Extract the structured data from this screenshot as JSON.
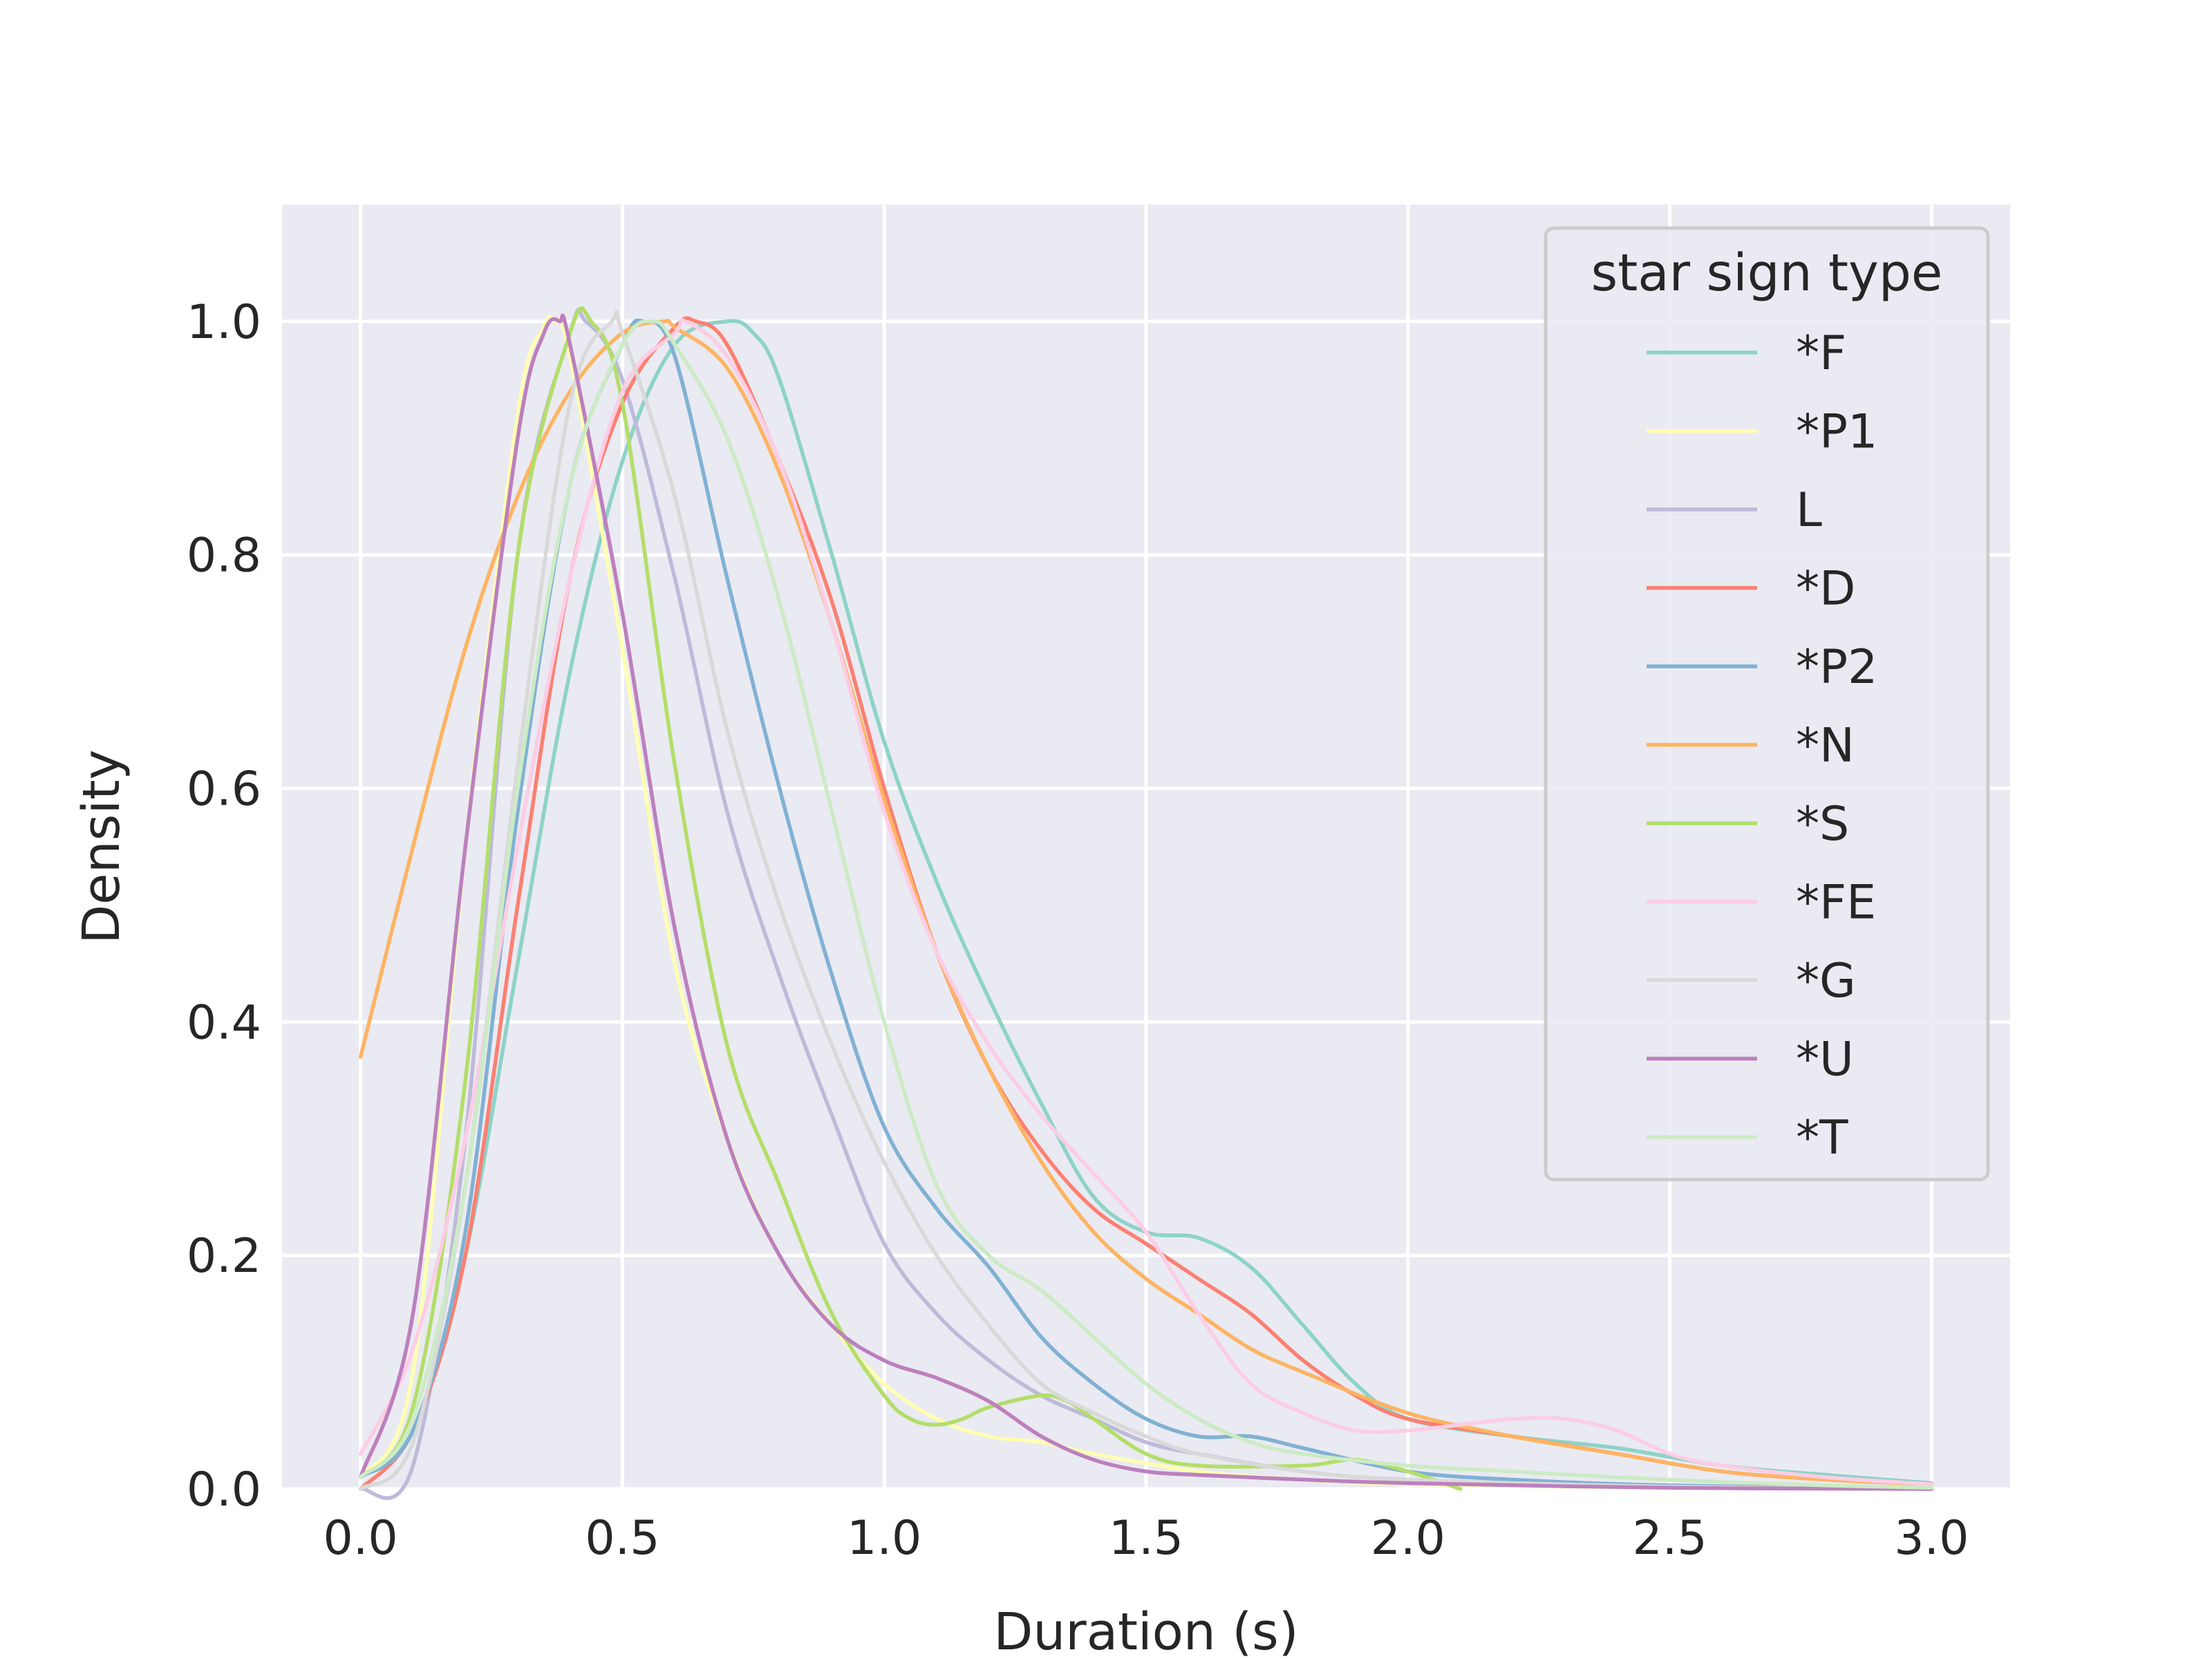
{
  "chart_data": {
    "type": "line",
    "xlabel": "Duration (s)",
    "ylabel": "Density",
    "xlim": [
      -0.15,
      3.15
    ],
    "ylim": [
      0.0,
      1.1
    ],
    "xticks": [
      0.0,
      0.5,
      1.0,
      1.5,
      2.0,
      2.5,
      3.0
    ],
    "xtick_labels": [
      "0.0",
      "0.5",
      "1.0",
      "1.5",
      "2.0",
      "2.5",
      "3.0"
    ],
    "yticks": [
      0.0,
      0.2,
      0.4,
      0.6,
      0.8,
      1.0
    ],
    "ytick_labels": [
      "0.0",
      "0.2",
      "0.4",
      "0.6",
      "0.8",
      "1.0"
    ],
    "grid": true,
    "legend": {
      "title": "star sign type",
      "placement": "upper-right"
    },
    "series": [
      {
        "name": "*F",
        "color": "#8dd3c7",
        "x": [
          0.0,
          0.1,
          0.2,
          0.3,
          0.4,
          0.5,
          0.6,
          0.7,
          0.75,
          0.8,
          0.9,
          1.0,
          1.1,
          1.2,
          1.3,
          1.4,
          1.5,
          1.6,
          1.7,
          1.8,
          1.9,
          2.0,
          2.2,
          2.4,
          2.6,
          2.8,
          3.0
        ],
        "y": [
          0.01,
          0.05,
          0.2,
          0.45,
          0.7,
          0.88,
          0.98,
          1.0,
          0.99,
          0.95,
          0.8,
          0.64,
          0.52,
          0.42,
          0.33,
          0.25,
          0.22,
          0.215,
          0.19,
          0.14,
          0.09,
          0.06,
          0.045,
          0.035,
          0.02,
          0.012,
          0.005
        ]
      },
      {
        "name": "*P1",
        "color": "#ffffb3",
        "x": [
          0.0,
          0.1,
          0.2,
          0.3,
          0.35,
          0.37,
          0.4,
          0.5,
          0.6,
          0.7,
          0.8,
          0.9,
          1.0,
          1.1,
          1.2,
          1.3,
          1.4,
          1.6,
          1.8,
          2.0,
          2.5,
          3.0
        ],
        "y": [
          0.01,
          0.1,
          0.55,
          0.92,
          0.995,
          1.0,
          0.97,
          0.72,
          0.45,
          0.3,
          0.2,
          0.14,
          0.09,
          0.06,
          0.045,
          0.04,
          0.03,
          0.015,
          0.008,
          0.004,
          0.001,
          0.0
        ]
      },
      {
        "name": "L",
        "color": "#bebada",
        "x": [
          0.0,
          0.1,
          0.2,
          0.3,
          0.4,
          0.43,
          0.5,
          0.6,
          0.7,
          0.8,
          0.9,
          1.0,
          1.1,
          1.2,
          1.3,
          1.4,
          1.5,
          1.6,
          1.8,
          2.0,
          2.5,
          3.0
        ],
        "y": [
          0.0,
          0.02,
          0.3,
          0.8,
          0.99,
          1.0,
          0.95,
          0.78,
          0.58,
          0.44,
          0.32,
          0.21,
          0.15,
          0.11,
          0.08,
          0.06,
          0.04,
          0.03,
          0.015,
          0.008,
          0.002,
          0.0
        ]
      },
      {
        "name": "*D",
        "color": "#fb8072",
        "x": [
          0.0,
          0.1,
          0.2,
          0.3,
          0.4,
          0.5,
          0.6,
          0.64,
          0.7,
          0.8,
          0.9,
          1.0,
          1.1,
          1.2,
          1.3,
          1.4,
          1.5,
          1.6,
          1.7,
          1.8,
          1.9,
          2.0,
          2.2,
          2.4,
          2.6,
          2.8,
          3.0
        ],
        "y": [
          0.0,
          0.05,
          0.2,
          0.5,
          0.78,
          0.93,
          0.995,
          1.0,
          0.98,
          0.88,
          0.76,
          0.6,
          0.46,
          0.36,
          0.29,
          0.24,
          0.21,
          0.18,
          0.15,
          0.11,
          0.08,
          0.06,
          0.045,
          0.03,
          0.015,
          0.008,
          0.004
        ]
      },
      {
        "name": "*P2",
        "color": "#80b1d3",
        "x": [
          0.0,
          0.1,
          0.2,
          0.3,
          0.4,
          0.5,
          0.54,
          0.6,
          0.7,
          0.8,
          0.9,
          1.0,
          1.1,
          1.2,
          1.3,
          1.4,
          1.5,
          1.6,
          1.7,
          1.8,
          2.0,
          2.2,
          2.5,
          3.0
        ],
        "y": [
          0.01,
          0.05,
          0.22,
          0.58,
          0.86,
          0.98,
          1.0,
          0.97,
          0.78,
          0.6,
          0.44,
          0.31,
          0.24,
          0.19,
          0.13,
          0.09,
          0.06,
          0.045,
          0.045,
          0.035,
          0.015,
          0.008,
          0.003,
          0.0
        ]
      },
      {
        "name": "*N",
        "color": "#fdb462",
        "x": [
          0.0,
          0.1,
          0.2,
          0.3,
          0.4,
          0.5,
          0.58,
          0.6,
          0.7,
          0.8,
          0.9,
          1.0,
          1.1,
          1.2,
          1.3,
          1.4,
          1.5,
          1.6,
          1.7,
          1.8,
          2.0,
          2.2,
          2.4,
          2.6,
          2.8,
          3.0
        ],
        "y": [
          0.37,
          0.55,
          0.72,
          0.85,
          0.94,
          0.99,
          1.0,
          0.995,
          0.96,
          0.87,
          0.74,
          0.59,
          0.46,
          0.36,
          0.28,
          0.22,
          0.18,
          0.15,
          0.12,
          0.1,
          0.065,
          0.045,
          0.03,
          0.015,
          0.008,
          0.004
        ]
      },
      {
        "name": "*S",
        "color": "#b3de69",
        "x": [
          0.0,
          0.1,
          0.2,
          0.3,
          0.4,
          0.44,
          0.5,
          0.6,
          0.7,
          0.8,
          0.9,
          1.0,
          1.05,
          1.1,
          1.15,
          1.2,
          1.3,
          1.35,
          1.4,
          1.5,
          1.6,
          1.8,
          1.9,
          2.0,
          2.1
        ],
        "y": [
          0.01,
          0.07,
          0.35,
          0.8,
          0.99,
          1.0,
          0.93,
          0.62,
          0.38,
          0.26,
          0.15,
          0.08,
          0.06,
          0.055,
          0.06,
          0.07,
          0.08,
          0.075,
          0.06,
          0.03,
          0.02,
          0.02,
          0.025,
          0.015,
          0.0
        ]
      },
      {
        "name": "*FE",
        "color": "#fccde5",
        "x": [
          0.0,
          0.1,
          0.2,
          0.3,
          0.4,
          0.5,
          0.6,
          0.62,
          0.7,
          0.8,
          0.9,
          1.0,
          1.1,
          1.2,
          1.3,
          1.4,
          1.5,
          1.6,
          1.7,
          1.8,
          1.9,
          2.0,
          2.1,
          2.2,
          2.3,
          2.4,
          2.5,
          2.6,
          2.8,
          3.0
        ],
        "y": [
          0.03,
          0.12,
          0.3,
          0.55,
          0.78,
          0.94,
          0.99,
          1.0,
          0.97,
          0.88,
          0.74,
          0.58,
          0.46,
          0.38,
          0.32,
          0.27,
          0.22,
          0.15,
          0.09,
          0.065,
          0.05,
          0.05,
          0.055,
          0.06,
          0.06,
          0.05,
          0.03,
          0.02,
          0.01,
          0.004
        ]
      },
      {
        "name": "*G",
        "color": "#d9d9d9",
        "x": [
          0.0,
          0.1,
          0.2,
          0.3,
          0.4,
          0.48,
          0.5,
          0.6,
          0.7,
          0.8,
          0.9,
          1.0,
          1.1,
          1.2,
          1.3,
          1.4,
          1.5,
          1.6,
          1.8,
          2.0,
          2.5,
          3.0
        ],
        "y": [
          0.0,
          0.04,
          0.26,
          0.62,
          0.93,
          1.0,
          0.99,
          0.85,
          0.65,
          0.5,
          0.38,
          0.28,
          0.2,
          0.14,
          0.09,
          0.065,
          0.045,
          0.03,
          0.015,
          0.008,
          0.002,
          0.0
        ]
      },
      {
        "name": "*U",
        "color": "#bc80bd",
        "x": [
          0.0,
          0.1,
          0.2,
          0.3,
          0.35,
          0.38,
          0.4,
          0.5,
          0.6,
          0.7,
          0.8,
          0.9,
          1.0,
          1.1,
          1.2,
          1.3,
          1.4,
          1.5,
          1.6,
          1.8,
          2.0,
          2.5,
          3.0
        ],
        "y": [
          0.01,
          0.15,
          0.55,
          0.9,
          0.99,
          1.0,
          0.98,
          0.75,
          0.48,
          0.3,
          0.2,
          0.14,
          0.11,
          0.095,
          0.075,
          0.045,
          0.025,
          0.015,
          0.012,
          0.008,
          0.005,
          0.001,
          0.0
        ]
      },
      {
        "name": "*T",
        "color": "#ccebc5",
        "x": [
          0.0,
          0.1,
          0.2,
          0.3,
          0.4,
          0.5,
          0.56,
          0.6,
          0.7,
          0.8,
          0.9,
          1.0,
          1.1,
          1.2,
          1.3,
          1.4,
          1.5,
          1.6,
          1.7,
          1.8,
          2.0,
          2.2,
          2.4,
          2.6,
          2.8,
          3.0
        ],
        "y": [
          0.01,
          0.06,
          0.26,
          0.6,
          0.86,
          0.98,
          1.0,
          0.98,
          0.9,
          0.76,
          0.58,
          0.4,
          0.26,
          0.2,
          0.17,
          0.13,
          0.09,
          0.06,
          0.04,
          0.03,
          0.02,
          0.015,
          0.01,
          0.006,
          0.003,
          0.001
        ]
      }
    ]
  }
}
